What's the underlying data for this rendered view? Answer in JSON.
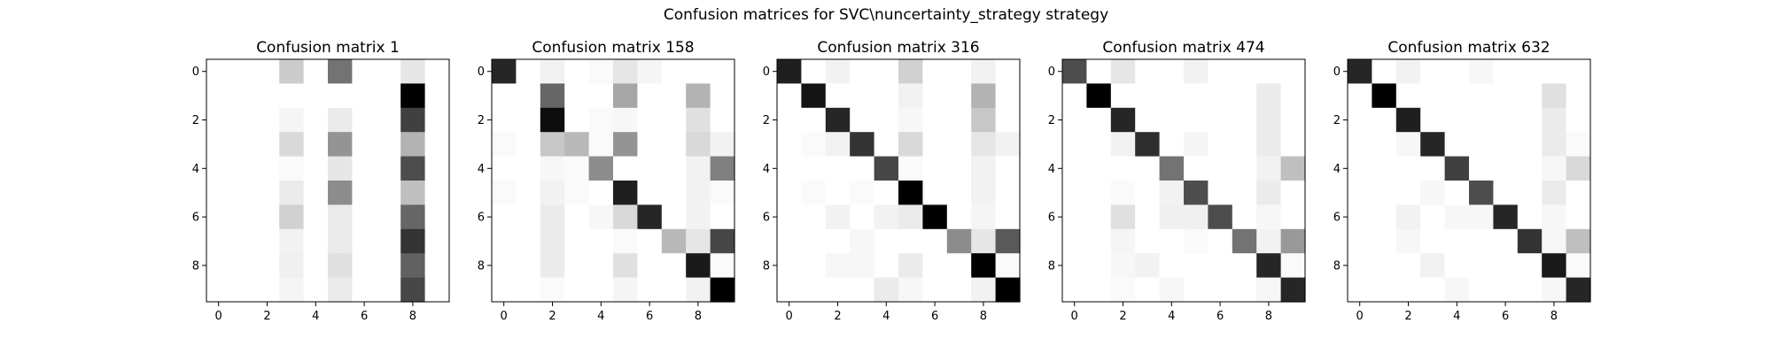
{
  "chart_data": {
    "suptitle": "Confusion matrices for SVC\\nuncertainty_strategy strategy",
    "type": "heatmap",
    "colormap": "Greys (0 = white, max = black)",
    "axes_ticks": [
      "0",
      "2",
      "4",
      "6",
      "8"
    ],
    "grid": false,
    "matrices": [
      {
        "title": "Confusion matrix 1",
        "values": [
          [
            0,
            0,
            0,
            20,
            0,
            55,
            0,
            0,
            10,
            0
          ],
          [
            0,
            0,
            0,
            0,
            0,
            0,
            0,
            0,
            100,
            0
          ],
          [
            0,
            0,
            0,
            4,
            0,
            8,
            0,
            0,
            75,
            0
          ],
          [
            0,
            0,
            0,
            15,
            0,
            42,
            0,
            0,
            30,
            0
          ],
          [
            0,
            0,
            0,
            2,
            0,
            10,
            0,
            0,
            70,
            0
          ],
          [
            0,
            0,
            0,
            8,
            0,
            45,
            0,
            0,
            25,
            0
          ],
          [
            0,
            0,
            0,
            18,
            0,
            8,
            0,
            0,
            60,
            0
          ],
          [
            0,
            0,
            0,
            5,
            0,
            8,
            0,
            0,
            80,
            0
          ],
          [
            0,
            0,
            0,
            6,
            0,
            12,
            0,
            0,
            62,
            0
          ],
          [
            0,
            0,
            0,
            4,
            0,
            8,
            0,
            0,
            72,
            0
          ]
        ]
      },
      {
        "title": "Confusion matrix 158",
        "values": [
          [
            85,
            0,
            5,
            0,
            2,
            10,
            4,
            0,
            0,
            0
          ],
          [
            0,
            0,
            60,
            0,
            0,
            35,
            0,
            0,
            30,
            0
          ],
          [
            0,
            0,
            95,
            0,
            2,
            3,
            0,
            0,
            12,
            0
          ],
          [
            2,
            0,
            22,
            28,
            2,
            42,
            0,
            0,
            15,
            5
          ],
          [
            0,
            0,
            3,
            2,
            45,
            0,
            0,
            0,
            5,
            50
          ],
          [
            2,
            0,
            5,
            2,
            0,
            88,
            0,
            0,
            5,
            2
          ],
          [
            0,
            0,
            8,
            0,
            3,
            15,
            85,
            0,
            5,
            0
          ],
          [
            0,
            0,
            8,
            0,
            0,
            2,
            0,
            28,
            10,
            72
          ],
          [
            0,
            0,
            8,
            0,
            0,
            12,
            0,
            0,
            90,
            2
          ],
          [
            0,
            0,
            2,
            0,
            0,
            4,
            0,
            0,
            5,
            100
          ]
        ]
      },
      {
        "title": "Confusion matrix 316",
        "values": [
          [
            88,
            0,
            5,
            0,
            0,
            18,
            0,
            0,
            5,
            0
          ],
          [
            0,
            92,
            0,
            0,
            0,
            5,
            0,
            0,
            30,
            0
          ],
          [
            0,
            0,
            85,
            0,
            0,
            3,
            0,
            0,
            22,
            0
          ],
          [
            0,
            2,
            5,
            80,
            0,
            15,
            0,
            0,
            10,
            5
          ],
          [
            0,
            0,
            0,
            0,
            72,
            2,
            0,
            0,
            5,
            0
          ],
          [
            0,
            2,
            0,
            2,
            0,
            100,
            0,
            0,
            5,
            0
          ],
          [
            0,
            0,
            5,
            0,
            5,
            8,
            100,
            0,
            4,
            0
          ],
          [
            0,
            0,
            0,
            3,
            0,
            0,
            0,
            45,
            10,
            65
          ],
          [
            0,
            0,
            3,
            3,
            0,
            8,
            0,
            0,
            100,
            2
          ],
          [
            0,
            0,
            0,
            0,
            8,
            3,
            0,
            0,
            5,
            100
          ]
        ]
      },
      {
        "title": "Confusion matrix 474",
        "values": [
          [
            70,
            0,
            10,
            0,
            0,
            5,
            0,
            0,
            0,
            0
          ],
          [
            0,
            100,
            0,
            0,
            0,
            0,
            0,
            0,
            8,
            0
          ],
          [
            0,
            0,
            85,
            0,
            0,
            0,
            0,
            0,
            8,
            0
          ],
          [
            0,
            0,
            5,
            82,
            0,
            4,
            0,
            0,
            8,
            0
          ],
          [
            0,
            0,
            0,
            0,
            55,
            0,
            0,
            0,
            5,
            25
          ],
          [
            0,
            0,
            2,
            0,
            5,
            70,
            0,
            0,
            8,
            0
          ],
          [
            0,
            0,
            12,
            0,
            6,
            6,
            70,
            0,
            3,
            0
          ],
          [
            0,
            0,
            4,
            0,
            0,
            2,
            0,
            55,
            5,
            40
          ],
          [
            0,
            0,
            3,
            5,
            0,
            0,
            0,
            0,
            85,
            2
          ],
          [
            0,
            0,
            2,
            0,
            3,
            0,
            0,
            0,
            3,
            85
          ]
        ]
      },
      {
        "title": "Confusion matrix 632",
        "values": [
          [
            85,
            0,
            5,
            0,
            0,
            3,
            0,
            0,
            0,
            0
          ],
          [
            0,
            100,
            0,
            0,
            0,
            0,
            0,
            0,
            12,
            0
          ],
          [
            0,
            0,
            88,
            0,
            0,
            0,
            0,
            0,
            8,
            0
          ],
          [
            0,
            0,
            3,
            85,
            0,
            0,
            0,
            0,
            8,
            2
          ],
          [
            0,
            0,
            0,
            0,
            75,
            0,
            0,
            0,
            3,
            15
          ],
          [
            0,
            0,
            0,
            3,
            0,
            70,
            0,
            0,
            8,
            0
          ],
          [
            0,
            0,
            5,
            0,
            3,
            3,
            85,
            0,
            3,
            0
          ],
          [
            0,
            0,
            3,
            0,
            0,
            0,
            0,
            80,
            3,
            25
          ],
          [
            0,
            0,
            0,
            5,
            0,
            0,
            0,
            0,
            90,
            2
          ],
          [
            0,
            0,
            0,
            0,
            3,
            0,
            0,
            0,
            3,
            85
          ]
        ]
      }
    ]
  }
}
